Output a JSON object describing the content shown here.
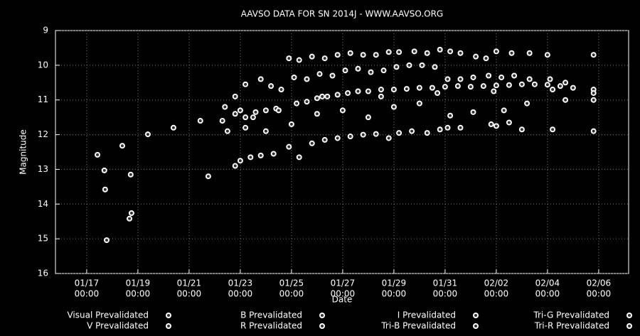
{
  "chart_data": {
    "type": "scatter",
    "title": "AAVSO DATA FOR SN 2014J - WWW.AAVSO.ORG",
    "x_label": "Date",
    "y_label": "Magnitude",
    "xlim": [
      15.78,
      38.17
    ],
    "ylim": [
      16,
      9
    ],
    "grid": true,
    "yticks": [
      9,
      10,
      11,
      12,
      13,
      14,
      15,
      16
    ],
    "xticks": [
      {
        "value": 17,
        "label": [
          "01/17",
          "00:00"
        ]
      },
      {
        "value": 19,
        "label": [
          "01/19",
          "00:00"
        ]
      },
      {
        "value": 21,
        "label": [
          "01/21",
          "00:00"
        ]
      },
      {
        "value": 23,
        "label": [
          "01/23",
          "00:00"
        ]
      },
      {
        "value": 25,
        "label": [
          "01/25",
          "00:00"
        ]
      },
      {
        "value": 27,
        "label": [
          "01/27",
          "00:00"
        ]
      },
      {
        "value": 29,
        "label": [
          "01/29",
          "00:00"
        ]
      },
      {
        "value": 31,
        "label": [
          "01/31",
          "00:00"
        ]
      },
      {
        "value": 33,
        "label": [
          "02/02",
          "00:00"
        ]
      },
      {
        "value": 35,
        "label": [
          "02/04",
          "00:00"
        ]
      },
      {
        "value": 37,
        "label": [
          "02/06",
          "00:00"
        ]
      }
    ],
    "series": [
      {
        "name": "Visual Prevalidated",
        "color": "#ffffff",
        "x": [
          17.42,
          17.69,
          17.72,
          17.78,
          18.39,
          18.72,
          18.67,
          18.75,
          19.39,
          20.39,
          21.44,
          21.75
        ],
        "values": [
          12.58,
          13.03,
          13.58,
          15.04,
          12.32,
          13.15,
          14.42,
          14.26,
          11.99,
          11.8,
          11.6,
          13.2
        ]
      },
      {
        "name": "B Prevalidated",
        "color": "#ffffff",
        "x": [
          22.8,
          23.0,
          23.4,
          23.8,
          24.3,
          24.9,
          25.3,
          25.8,
          26.3,
          26.8,
          27.3,
          27.8,
          28.3,
          28.8,
          29.2,
          29.7,
          30.3,
          30.8,
          31.1,
          31.6,
          32.8,
          33.0,
          33.5,
          34.0,
          35.2,
          36.8
        ],
        "values": [
          12.9,
          12.75,
          12.65,
          12.6,
          12.55,
          12.35,
          12.65,
          12.25,
          12.15,
          12.1,
          12.05,
          12.0,
          11.98,
          12.1,
          11.95,
          11.9,
          11.95,
          11.85,
          11.8,
          11.8,
          11.7,
          11.75,
          11.65,
          11.85,
          11.85,
          11.9
        ]
      },
      {
        "name": "I Prevalidated",
        "color": "#ffffff",
        "x": [
          24.9,
          25.3,
          25.8,
          26.3,
          26.8,
          27.3,
          27.8,
          28.3,
          28.8,
          29.2,
          29.8,
          30.3,
          30.8,
          31.2,
          31.6,
          32.2,
          32.6,
          33.0,
          33.6,
          34.3,
          35.0,
          36.8
        ],
        "values": [
          9.8,
          9.85,
          9.75,
          9.8,
          9.7,
          9.65,
          9.7,
          9.7,
          9.62,
          9.62,
          9.6,
          9.65,
          9.55,
          9.6,
          9.65,
          9.75,
          9.8,
          9.6,
          9.65,
          9.65,
          9.7,
          9.7
        ]
      },
      {
        "name": "Tri-G Prevalidated",
        "color": "#ffffff",
        "x": [
          22.5,
          23.5,
          25.0,
          27.0,
          29.0,
          31.2,
          33.3,
          35.7,
          36.8
        ],
        "values": [
          11.9,
          11.5,
          11.7,
          11.3,
          11.2,
          11.45,
          11.3,
          11.0,
          11.0
        ]
      },
      {
        "name": "V Prevalidated",
        "color": "#ffffff",
        "x": [
          22.3,
          22.8,
          23.2,
          23.6,
          24.0,
          24.4,
          25.2,
          25.6,
          26.0,
          26.4,
          26.8,
          27.2,
          27.6,
          28.0,
          28.5,
          29.0,
          29.5,
          30.0,
          30.5,
          31.0,
          31.5,
          32.0,
          32.5,
          33.0,
          33.5,
          34.0,
          34.5,
          35.0,
          35.5,
          36.0,
          36.8
        ],
        "values": [
          11.6,
          11.4,
          11.5,
          11.35,
          11.3,
          11.25,
          11.1,
          11.05,
          10.95,
          10.9,
          10.85,
          10.8,
          10.75,
          10.75,
          10.7,
          10.7,
          10.68,
          10.65,
          10.65,
          10.62,
          10.6,
          10.62,
          10.6,
          10.58,
          10.57,
          10.55,
          10.55,
          10.56,
          10.6,
          10.65,
          10.7
        ]
      },
      {
        "name": "R Prevalidated",
        "color": "#ffffff",
        "x": [
          22.4,
          22.8,
          23.2,
          23.8,
          24.2,
          24.6,
          25.1,
          25.6,
          26.1,
          26.6,
          27.1,
          27.6,
          28.1,
          28.6,
          29.1,
          29.6,
          30.1,
          30.6,
          31.1,
          31.6,
          32.1,
          32.7,
          33.2,
          33.7,
          34.3,
          35.1,
          35.7
        ],
        "values": [
          11.2,
          10.9,
          10.55,
          10.4,
          10.6,
          10.7,
          10.35,
          10.4,
          10.25,
          10.3,
          10.15,
          10.1,
          10.2,
          10.15,
          10.05,
          10.0,
          10.0,
          10.05,
          10.4,
          10.4,
          10.35,
          10.3,
          10.35,
          10.3,
          10.4,
          10.4,
          10.5
        ]
      },
      {
        "name": "Tri-B Prevalidated",
        "color": "#ffffff",
        "x": [
          23.2,
          24.0,
          26.0,
          28.0,
          30.0,
          32.1,
          34.2
        ],
        "values": [
          11.8,
          11.9,
          11.4,
          11.5,
          11.1,
          11.35,
          11.1
        ]
      },
      {
        "name": "Tri-R Prevalidated",
        "color": "#ffffff",
        "x": [
          23.0,
          24.5,
          26.2,
          28.5,
          30.7,
          32.9,
          35.2,
          36.8
        ],
        "values": [
          11.3,
          11.3,
          10.9,
          10.9,
          10.8,
          10.75,
          10.7,
          10.8
        ]
      }
    ]
  }
}
